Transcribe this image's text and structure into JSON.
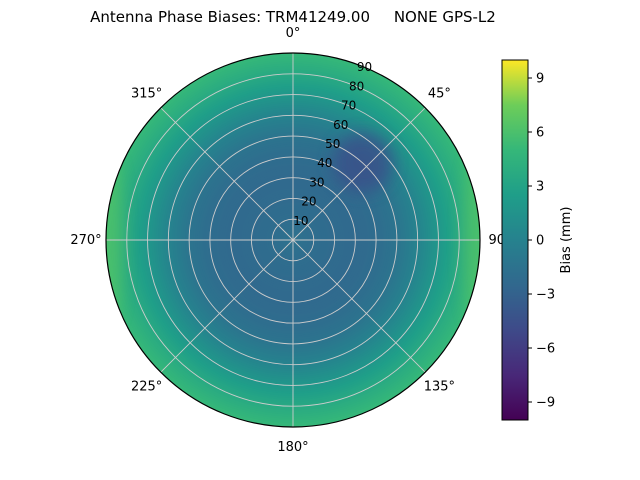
{
  "title": "Antenna Phase Biases: TRM41249.00     NONE GPS-L2",
  "chart_data": {
    "type": "heatmap",
    "projection": "polar",
    "title": "Antenna Phase Biases: TRM41249.00     NONE GPS-L2",
    "antenna": "TRM41249.00     NONE",
    "signal": "GPS-L2",
    "angular_ticks": [
      "0°",
      "45°",
      "90°",
      "135°",
      "180°",
      "225°",
      "270°",
      "315°"
    ],
    "radial_ticks": [
      "10",
      "20",
      "30",
      "40",
      "50",
      "60",
      "70",
      "80",
      "90"
    ],
    "radial_label_azimuth_deg": 22.5,
    "value_range": [
      -10,
      10
    ],
    "colorbar": {
      "label": "Bias (mm)",
      "tick_values": [
        9,
        6,
        3,
        0,
        -3,
        -6,
        -9
      ],
      "tick_labels": [
        "9",
        "6",
        "3",
        "0",
        "−3",
        "−6",
        "−9"
      ]
    },
    "colormap": {
      "name": "viridis",
      "stops": [
        [
          0,
          "#440154"
        ],
        [
          0.125,
          "#482878"
        ],
        [
          0.25,
          "#3e4a89"
        ],
        [
          0.375,
          "#31688e"
        ],
        [
          0.5,
          "#26828e"
        ],
        [
          0.625,
          "#1f9e89"
        ],
        [
          0.75,
          "#35b779"
        ],
        [
          0.875,
          "#6dcd59"
        ],
        [
          1,
          "#fde725"
        ]
      ]
    },
    "radial_profile": {
      "zenith_deg": [
        0,
        10,
        20,
        30,
        40,
        50,
        60,
        70,
        80,
        90
      ],
      "bias_mm": [
        -1.5,
        -2.0,
        -2.2,
        -2.3,
        -2.1,
        -1.4,
        0.0,
        1.8,
        3.5,
        5.0
      ]
    },
    "local_minimum": {
      "azimuth_deg": 42,
      "zenith_deg": 50,
      "bias_mm": -4.5
    },
    "rim_highlights": [
      {
        "azimuth_deg": 90,
        "bias_mm": 7
      },
      {
        "azimuth_deg": 270,
        "bias_mm": 7
      }
    ]
  }
}
